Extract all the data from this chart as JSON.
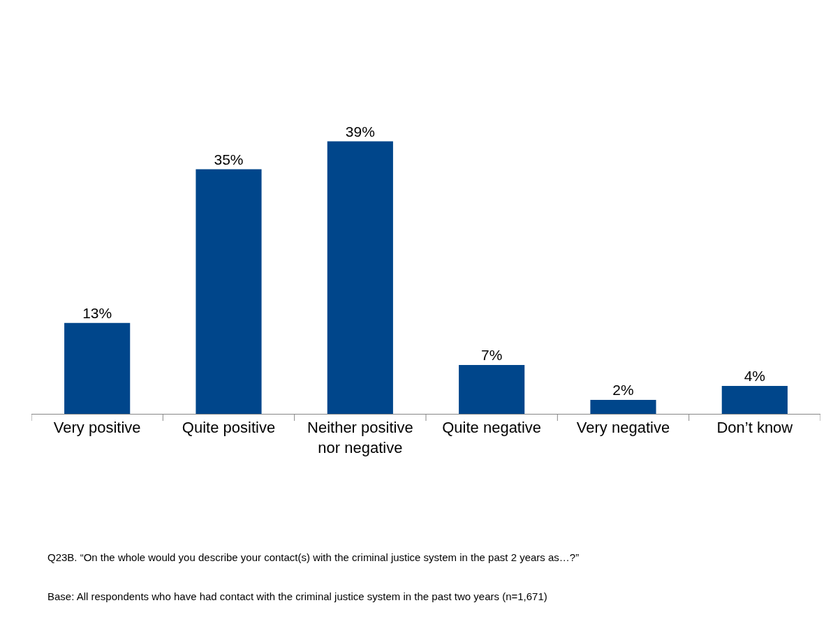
{
  "chart_data": {
    "type": "bar",
    "categories": [
      "Very positive",
      "Quite positive",
      "Neither positive nor negative",
      "Quite negative",
      "Very negative",
      "Don’t know"
    ],
    "values": [
      13,
      35,
      39,
      7,
      2,
      4
    ],
    "color": "#00468b",
    "value_labels": [
      "13%",
      "35%",
      "39%",
      "7%",
      "2%",
      "4%"
    ],
    "annotations": [
      "Q23B. “On the whole would you describe your contact(s) with the criminal justice system in the past 2 years as…?”",
      "Base: All respondents who have had contact with the criminal justice system in the past two years (n=1,671)"
    ]
  }
}
